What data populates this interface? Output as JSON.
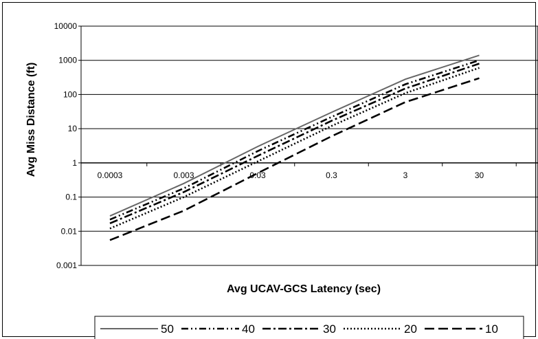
{
  "chart_data": {
    "type": "line",
    "title": "",
    "xlabel": "Avg UCAV-GCS Latency (sec)",
    "ylabel": "Avg Miss Distance (ft)",
    "x_scale": "log",
    "y_scale": "log",
    "x_categories": [
      "0.0003",
      "0.003",
      "0.03",
      "0.3",
      "3",
      "30"
    ],
    "y_tick_labels": [
      "0.001",
      "0.01",
      "0.1",
      "1",
      "10",
      "100",
      "1000",
      "10000"
    ],
    "ylim": [
      0.001,
      10000
    ],
    "grid": "horizontal",
    "legend_position": "bottom",
    "series": [
      {
        "name": "50",
        "x": [
          0.0003,
          0.003,
          0.03,
          0.3,
          3,
          30
        ],
        "values": [
          0.028,
          0.25,
          3,
          30,
          280,
          1400
        ],
        "style": "solid"
      },
      {
        "name": "40",
        "x": [
          0.0003,
          0.003,
          0.03,
          0.3,
          3,
          30
        ],
        "values": [
          0.022,
          0.18,
          2.2,
          22,
          200,
          1000
        ],
        "style": "dash-dot-dot"
      },
      {
        "name": "30",
        "x": [
          0.0003,
          0.003,
          0.03,
          0.3,
          3,
          30
        ],
        "values": [
          0.017,
          0.14,
          1.6,
          17,
          150,
          800
        ],
        "style": "dash-dot"
      },
      {
        "name": "20",
        "x": [
          0.0003,
          0.003,
          0.03,
          0.3,
          3,
          30
        ],
        "values": [
          0.012,
          0.1,
          1.1,
          12,
          110,
          600
        ],
        "style": "dotted"
      },
      {
        "name": "10",
        "x": [
          0.0003,
          0.003,
          0.03,
          0.3,
          3,
          30
        ],
        "values": [
          0.0055,
          0.04,
          0.5,
          6,
          60,
          300
        ],
        "style": "dashed"
      }
    ],
    "colors": {
      "series": "#000000",
      "series_50": "#666666",
      "grid": "#000000",
      "plot_background": "#ffffff"
    }
  }
}
